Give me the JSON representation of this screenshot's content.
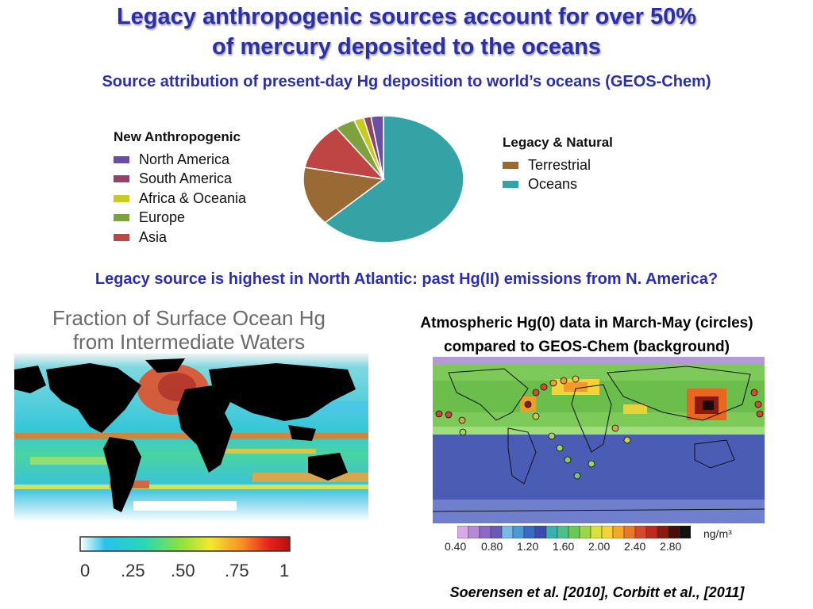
{
  "slide": {
    "title_line1": "Legacy anthropogenic sources account for over 50%",
    "title_line2": "of mercury deposited to the oceans",
    "subtitle": "Source attribution of present-day Hg deposition to world’s oceans (GEOS-Chem)"
  },
  "pie_legend_left": {
    "title": "New Anthropogenic",
    "items": [
      {
        "label": "North America",
        "color": "#6a4fa0"
      },
      {
        "label": "South America",
        "color": "#8e4568"
      },
      {
        "label": "Africa & Oceania",
        "color": "#c9c91e"
      },
      {
        "label": "Europe",
        "color": "#7da13e"
      },
      {
        "label": "Asia",
        "color": "#bf4444"
      }
    ]
  },
  "pie_legend_right": {
    "title": "Legacy & Natural",
    "items": [
      {
        "label": "Terrestrial",
        "color": "#9a6a34"
      },
      {
        "label": "Oceans",
        "color": "#35a3a6"
      }
    ]
  },
  "chart_data": {
    "type": "pie",
    "labels": [
      "Oceans",
      "Terrestrial",
      "Asia",
      "Europe",
      "Africa & Oceania",
      "South America",
      "North America"
    ],
    "values": [
      63,
      15,
      12,
      4,
      2,
      1.5,
      2.5
    ],
    "colors": [
      "#35a3a6",
      "#9a6a34",
      "#bf4444",
      "#7da13e",
      "#c9c91e",
      "#8e4568",
      "#6a4fa0"
    ]
  },
  "legacy_heading": "Legacy source is highest in North Atlantic: past Hg(II) emissions from N. America?",
  "map1": {
    "title_line1": "Fraction of Surface Ocean Hg",
    "title_line2": "from Intermediate Waters",
    "colorbar_ticks": [
      "0",
      ".25",
      ".50",
      ".75",
      "1"
    ]
  },
  "map2": {
    "caption_line1": "Atmospheric Hg(0) data in March-May (circles)",
    "caption_line2": "compared to GEOS-Chem (background)",
    "colorbar_ticks": [
      "0.40",
      "0.80",
      "1.20",
      "1.60",
      "2.00",
      "2.40",
      "2.80"
    ],
    "units": "ng/m³"
  },
  "citation": "Soerensen et al. [2010], Corbitt et al., [2011]"
}
